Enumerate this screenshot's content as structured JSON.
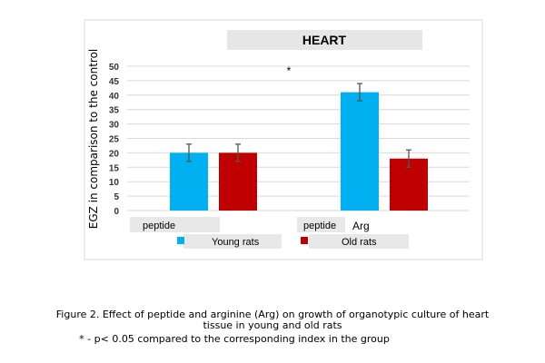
{
  "chart_data": {
    "type": "bar",
    "title": "HEART",
    "ylabel": "EGZ in comparison to the control",
    "ylim": [
      0,
      50
    ],
    "yticks": [
      "0",
      "5",
      "10",
      "15",
      "20",
      "25",
      "30",
      "35",
      "40",
      "45",
      "50"
    ],
    "grid": true,
    "legend_position": "bottom",
    "groups": [
      "peptide",
      "Arg"
    ],
    "group_label_box": "peptide",
    "series": [
      {
        "name": "Young rats",
        "color": "#00b0f0",
        "values": [
          20,
          41
        ],
        "errors": [
          3,
          3
        ]
      },
      {
        "name": "Old rats",
        "color": "#c00000",
        "values": [
          20,
          18
        ],
        "errors": [
          3,
          3
        ]
      }
    ],
    "annotations": [
      "*"
    ]
  },
  "caption": {
    "line1": "Figure 2. Effect of peptide and arginine (Arg) on growth of organotypic culture of heart",
    "line2": "tissue in young and old rats",
    "line3": "* - p< 0.05 compared to the corresponding  index in the group"
  }
}
